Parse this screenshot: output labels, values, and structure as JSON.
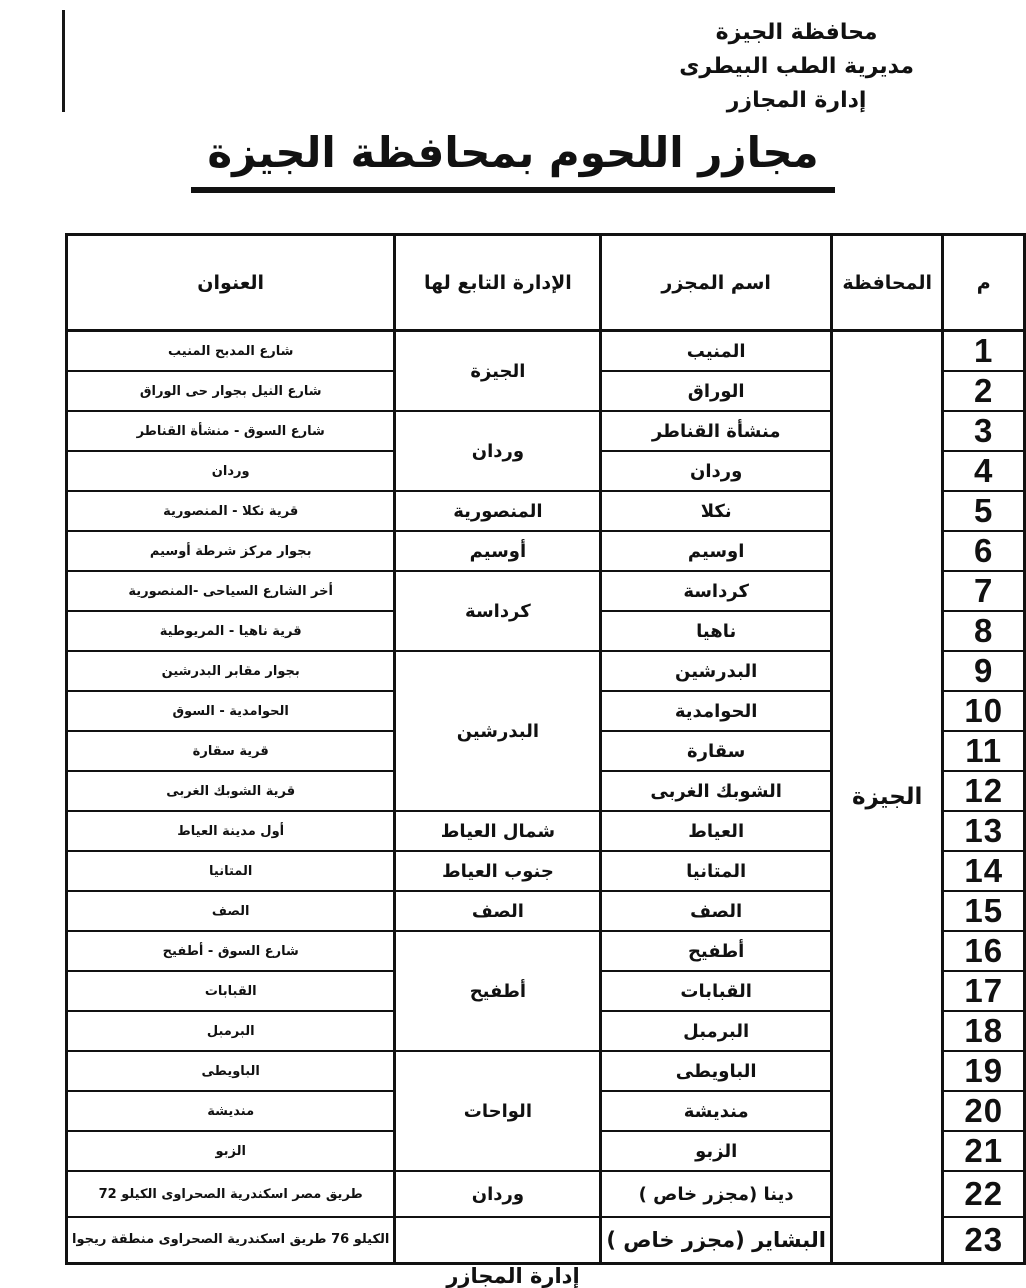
{
  "page": {
    "letterhead": [
      "محافظة الجيزة",
      "مديرية الطب البيطرى",
      "إدارة المجازر"
    ],
    "title": "مجازر اللحوم بمحافظة الجيزة",
    "footer_partial": "إدارة المجازر"
  },
  "colors": {
    "ink": "#111111",
    "page": "#ffffff"
  },
  "table": {
    "headers": {
      "no": "م",
      "governorate": "المحافظة",
      "name": "اسم المجزر",
      "admin": "الإدارة التابع لها",
      "address": "العنوان"
    },
    "governorate": "الجيزة",
    "rows": [
      {
        "no": "1",
        "name": "المنيب",
        "admin": "الجيزة",
        "admin_span": 2,
        "address": "شارع المدبح المنيب"
      },
      {
        "no": "2",
        "name": "الوراق",
        "address": "شارع النيل بجوار حى الوراق"
      },
      {
        "no": "3",
        "name": "منشأة القناطر",
        "admin": "وردان",
        "admin_span": 2,
        "address": "شارع السوق - منشأة القناطر"
      },
      {
        "no": "4",
        "name": "وردان",
        "address": "وردان"
      },
      {
        "no": "5",
        "name": "نكلا",
        "admin": "المنصورية",
        "admin_span": 1,
        "address": "قرية نكلا - المنصورية"
      },
      {
        "no": "6",
        "name": "اوسيم",
        "admin": "أوسيم",
        "admin_span": 1,
        "address": "بجوار مركز شرطة أوسيم"
      },
      {
        "no": "7",
        "name": "كرداسة",
        "admin": "كرداسة",
        "admin_span": 2,
        "address": "أخر الشارع السياحى -المنصورية"
      },
      {
        "no": "8",
        "name": "ناهيا",
        "address": "قرية ناهيا - المريوطية"
      },
      {
        "no": "9",
        "name": "البدرشين",
        "admin": "البدرشين",
        "admin_span": 4,
        "address": "بجوار مقابر البدرشين"
      },
      {
        "no": "10",
        "name": "الحوامدية",
        "address": "الحوامدية - السوق"
      },
      {
        "no": "11",
        "name": "سقارة",
        "address": "قرية سقارة"
      },
      {
        "no": "12",
        "name": "الشوبك الغربى",
        "address": "قرية الشوبك الغربى"
      },
      {
        "no": "13",
        "name": "العياط",
        "admin": "شمال العياط",
        "admin_span": 1,
        "address": "أول مدينة العياط"
      },
      {
        "no": "14",
        "name": "المتانيا",
        "admin": "جنوب العياط",
        "admin_span": 1,
        "address": "المتانيا"
      },
      {
        "no": "15",
        "name": "الصف",
        "admin": "الصف",
        "admin_span": 1,
        "address": "الصف"
      },
      {
        "no": "16",
        "name": "أطفيح",
        "admin": "أطفيح",
        "admin_span": 3,
        "address": "شارع السوق - أطفيح"
      },
      {
        "no": "17",
        "name": "القبابات",
        "address": "القبابات"
      },
      {
        "no": "18",
        "name": "البرمبل",
        "address": "البرمبل"
      },
      {
        "no": "19",
        "name": "الباويطى",
        "admin": "الواحات",
        "admin_span": 3,
        "address": "الباويطى"
      },
      {
        "no": "20",
        "name": "منديشة",
        "address": "منديشة"
      },
      {
        "no": "21",
        "name": "الزبو",
        "address": "الزبو"
      },
      {
        "no": "22",
        "name": "دينا (مجزر خاص )",
        "admin": "وردان",
        "admin_span": 1,
        "address": "طريق مصر اسكندرية الصحراوى الكيلو 72",
        "tall": true
      },
      {
        "no": "23",
        "name": "البشاير (مجزر خاص )",
        "admin": "",
        "admin_span": 1,
        "address": "الكيلو 76 طريق اسكندرية الصحراوى منطقة ريجوا",
        "tall": true,
        "name_large": true
      }
    ]
  }
}
